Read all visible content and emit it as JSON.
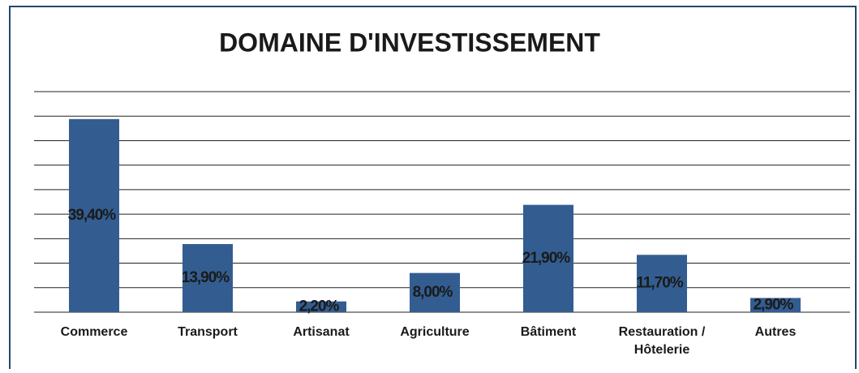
{
  "chart_data": {
    "type": "bar",
    "title": "DOMAINE D'INVESTISSEMENT",
    "categories": [
      "Commerce",
      "Transport",
      "Artisanat",
      "Agriculture",
      "Bâtiment",
      "Restauration /\nHôtelerie",
      "Autres"
    ],
    "values": [
      39.4,
      13.9,
      2.2,
      8.0,
      21.9,
      11.7,
      2.9
    ],
    "value_labels": [
      "39,40%",
      "13,90%",
      "2,20%",
      "8,00%",
      "21,90%",
      "11,70%",
      "2,90%"
    ],
    "color": "#335d91",
    "ylim": [
      0,
      45
    ],
    "yticks": [
      0,
      5,
      10,
      15,
      20,
      25,
      30,
      35,
      40,
      45
    ],
    "grid": true
  }
}
